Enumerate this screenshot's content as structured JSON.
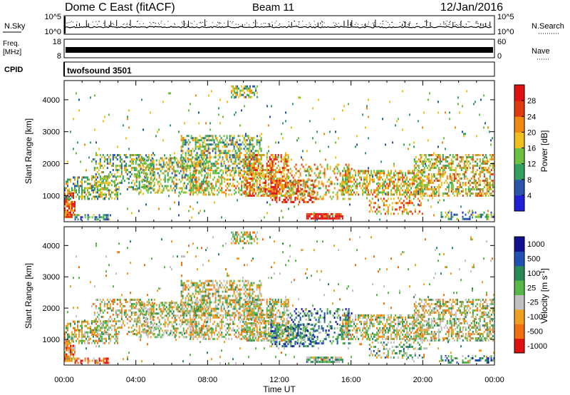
{
  "header": {
    "station": "Dome C East (fitACF)",
    "beam": "Beam 11",
    "date": "12/Jan/2016"
  },
  "panels": {
    "nsky": {
      "label": "N.Sky",
      "tick_top": "10^5",
      "tick_bottom": "10^0"
    },
    "nsearch": {
      "label": "N.Search",
      "tick_top": "10^5",
      "tick_bottom": "10^0"
    },
    "freq": {
      "label_line1": "Freq.",
      "label_line2": "[MHz]",
      "tick_top": "18",
      "tick_bottom": "8"
    },
    "nave": {
      "label": "Nave",
      "tick_top": "60",
      "tick_bottom": "0"
    },
    "cpid": {
      "label": "CPID",
      "value": "twofsound 3501"
    }
  },
  "colors": {
    "power": [
      "#1f1fd6",
      "#2a55aa",
      "#33a060",
      "#6ec040",
      "#f0c020",
      "#f08a10",
      "#e03a10",
      "#e01010"
    ],
    "velocity": [
      "#e01010",
      "#f07010",
      "#f0a020",
      "#c0c0c0",
      "#58b848",
      "#2a8a55",
      "#2050b0",
      "#101090"
    ]
  },
  "chart_data": [
    {
      "type": "heatmap",
      "title": "Power",
      "xlabel": "Time UT",
      "ylabel": "Slant Range [km]",
      "x_ticks": [
        "00:00",
        "04:00",
        "08:00",
        "12:00",
        "16:00",
        "20:00",
        "00:00"
      ],
      "x_range_hours": [
        0,
        24
      ],
      "y_ticks": [
        1000,
        2000,
        3000,
        4000
      ],
      "ylim": [
        180,
        4600
      ],
      "colorbar": {
        "label": "Power [dB]",
        "ticks": [
          4,
          8,
          12,
          16,
          20,
          24,
          28
        ],
        "range": [
          0,
          32
        ]
      }
    },
    {
      "type": "heatmap",
      "title": "Velocity",
      "xlabel": "Time UT",
      "ylabel": "Slant Range [km]",
      "x_ticks": [
        "00:00",
        "04:00",
        "08:00",
        "12:00",
        "16:00",
        "20:00",
        "00:00"
      ],
      "x_range_hours": [
        0,
        24
      ],
      "y_ticks": [
        1000,
        2000,
        3000,
        4000
      ],
      "ylim": [
        180,
        4600
      ],
      "colorbar": {
        "label_base": "Velocity [m s",
        "label_exp": "-1",
        "label_end": "]",
        "ticks": [
          "1000",
          "500",
          "100",
          "25",
          "-25",
          "-100",
          "-500",
          "-1000"
        ]
      }
    }
  ]
}
